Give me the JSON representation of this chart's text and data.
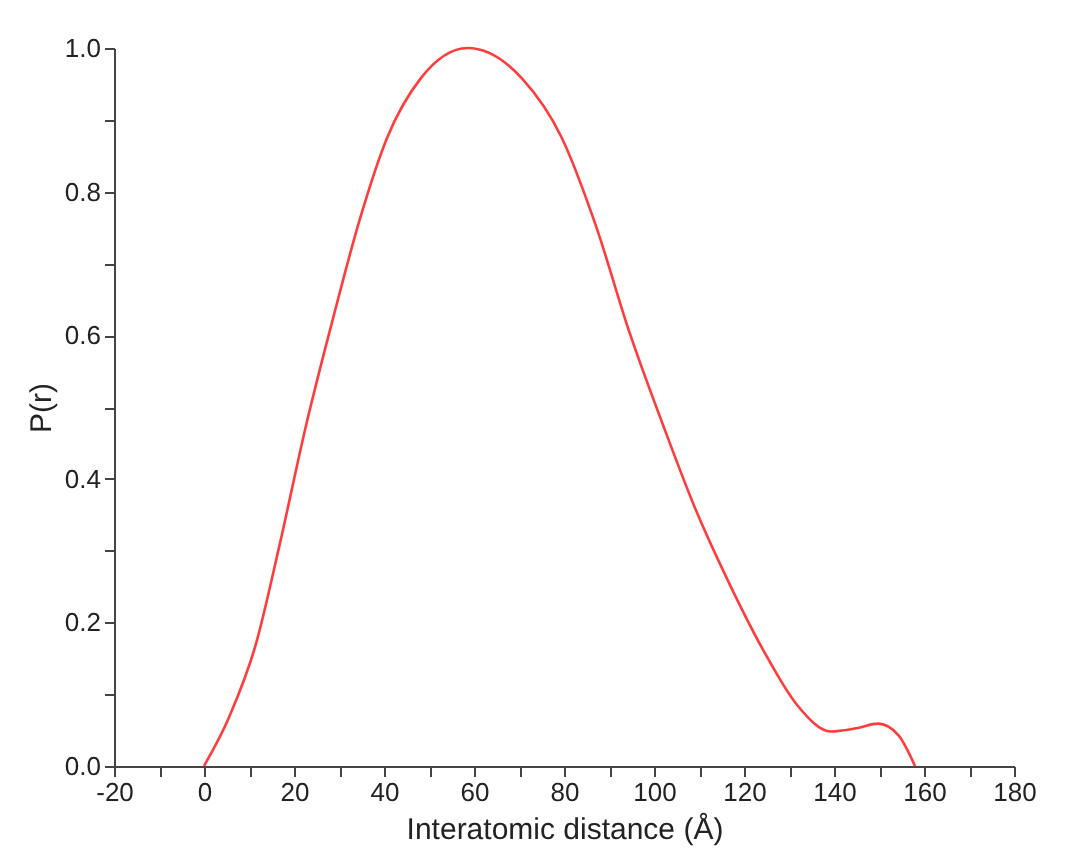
{
  "chart_data": {
    "type": "line",
    "xlabel": "Interatomic distance (Å)",
    "ylabel": "P(r)",
    "x": [
      0,
      5.5,
      11.5,
      16.8,
      22.7,
      28.7,
      34.7,
      40.7,
      48.2,
      58.6,
      70.6,
      79.5,
      87,
      94.5,
      102,
      109.4,
      116.9,
      124.4,
      131.8,
      139.3,
      145.3,
      149.8,
      154.3,
      158
    ],
    "series": [
      {
        "color": "#ff3b3b",
        "values": [
          0,
          0.067,
          0.169,
          0.308,
          0.475,
          0.624,
          0.763,
          0.875,
          0.958,
          1.0,
          0.958,
          0.875,
          0.754,
          0.605,
          0.475,
          0.355,
          0.252,
          0.16,
          0.085,
          0.048,
          0.053,
          0.059,
          0.043,
          0
        ]
      }
    ],
    "xlim": [
      -20,
      180
    ],
    "ylim": [
      0,
      1.0
    ],
    "xticks": [
      -20,
      {
        "value": -10,
        "label": null
      },
      0,
      {
        "value": 10,
        "label": null
      },
      20,
      {
        "value": 30,
        "label": null
      },
      40,
      {
        "value": 50,
        "label": null
      },
      60,
      {
        "value": 70,
        "label": null
      },
      80,
      {
        "value": 90,
        "label": null
      },
      100,
      {
        "value": 110,
        "label": null
      },
      120,
      {
        "value": 130,
        "label": null
      },
      140,
      {
        "value": 150,
        "label": null
      },
      160,
      {
        "value": 170,
        "label": null
      },
      180
    ],
    "yticks": [
      {
        "value": 0,
        "label": "0.0"
      },
      {
        "value": 0.1,
        "label": null
      },
      {
        "value": 0.2,
        "label": "0.2"
      },
      {
        "value": 0.3,
        "label": null
      },
      {
        "value": 0.4,
        "label": "0.4"
      },
      {
        "value": 0.5,
        "label": null
      },
      {
        "value": 0.6,
        "label": "0.6"
      },
      {
        "value": 0.7,
        "label": null
      },
      {
        "value": 0.8,
        "label": "0.8"
      },
      {
        "value": 0.9,
        "label": null
      },
      {
        "value": 1.0,
        "label": "1.0"
      }
    ],
    "grid": false,
    "marker": "none",
    "line_style": "solid"
  }
}
